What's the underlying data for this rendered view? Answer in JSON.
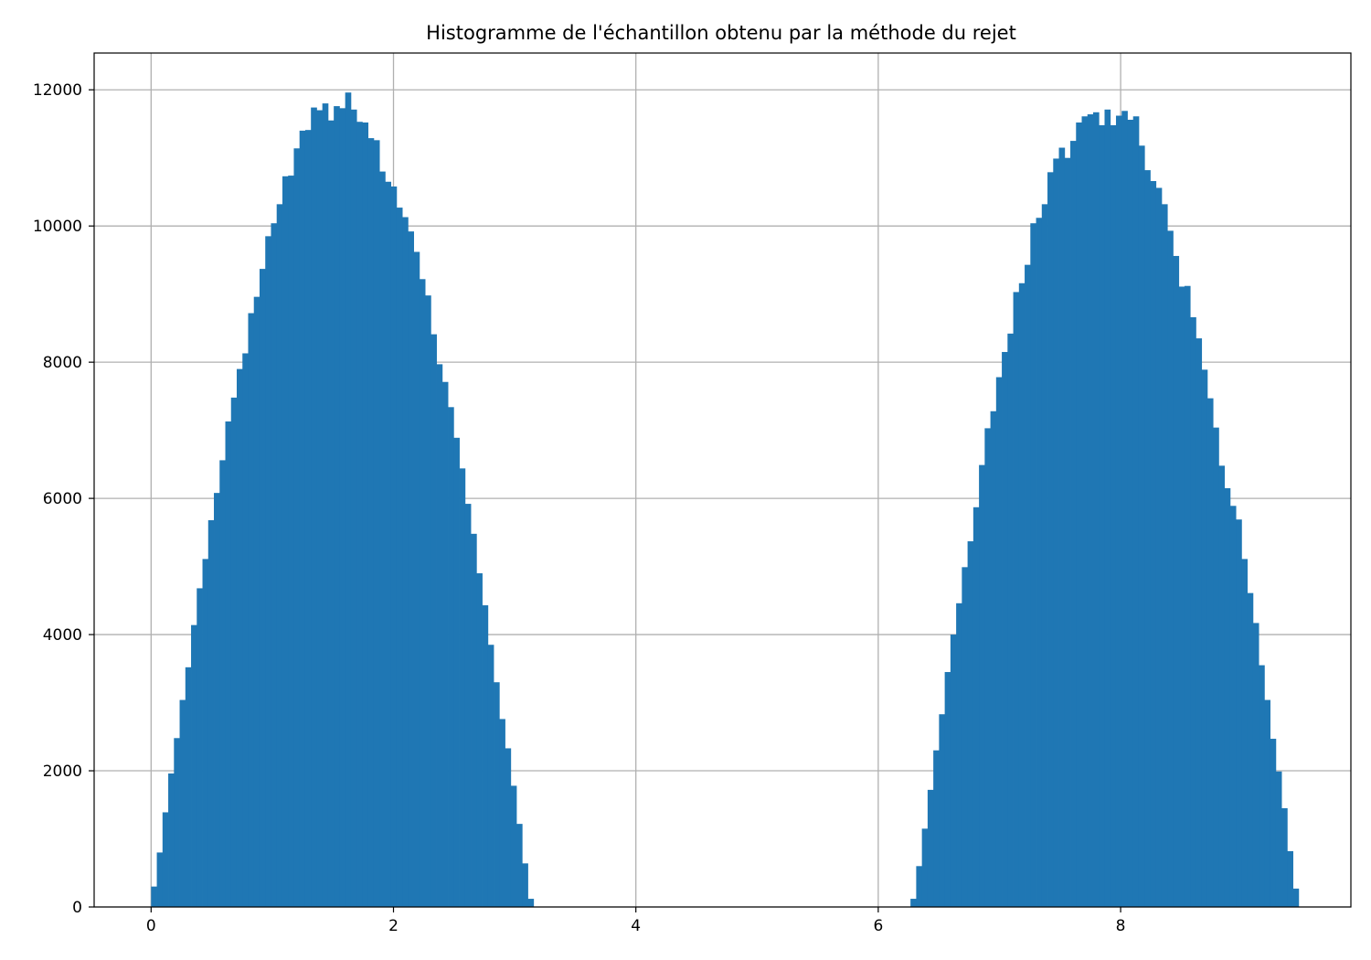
{
  "chart_data": {
    "type": "bar",
    "title": "Histogramme de l'échantillon obtenu par la méthode du rejet",
    "xlabel": "",
    "ylabel": "",
    "xlim": [
      -0.47,
      9.9
    ],
    "ylim": [
      0,
      12540
    ],
    "grid": true,
    "bar_color": "#1f77b4",
    "grid_color": "#b0b0b0",
    "x_ticks": [
      0,
      2,
      4,
      6,
      8
    ],
    "x_tick_labels": [
      "0",
      "2",
      "4",
      "6",
      "8"
    ],
    "y_ticks": [
      0,
      2000,
      4000,
      6000,
      8000,
      10000,
      12000
    ],
    "y_tick_labels": [
      "0",
      "2000",
      "4000",
      "6000",
      "8000",
      "10000",
      "12000"
    ],
    "bin_width": 0.0471,
    "segments": [
      {
        "start": 0.0,
        "values": [
          300,
          800,
          1390,
          1960,
          2480,
          3040,
          3520,
          4140,
          4680,
          5110,
          5680,
          6080,
          6560,
          7130,
          7480,
          7900,
          8130,
          8720,
          8960,
          9370,
          9850,
          10040,
          10320,
          10730,
          10740,
          11140,
          11400,
          11410,
          11740,
          11700,
          11800,
          11550,
          11760,
          11730,
          11960,
          11710,
          11530,
          11520,
          11290,
          11260,
          10800,
          10650,
          10580,
          10270,
          10130,
          9920,
          9620,
          9220,
          8980,
          8410,
          7970,
          7710,
          7340,
          6890,
          6440,
          5920,
          5480,
          4900,
          4430,
          3850,
          3300,
          2760,
          2330,
          1780,
          1220,
          640,
          120
        ]
      },
      {
        "start": 6.266,
        "values": [
          120,
          600,
          1150,
          1720,
          2300,
          2830,
          3450,
          4000,
          4460,
          4990,
          5370,
          5870,
          6490,
          7030,
          7280,
          7780,
          8150,
          8420,
          9030,
          9160,
          9430,
          10040,
          10120,
          10320,
          10790,
          10990,
          11150,
          11000,
          11250,
          11520,
          11610,
          11640,
          11670,
          11480,
          11710,
          11480,
          11620,
          11690,
          11560,
          11610,
          11180,
          10820,
          10660,
          10560,
          10320,
          9930,
          9560,
          9110,
          9120,
          8660,
          8350,
          7890,
          7470,
          7040,
          6480,
          6150,
          5890,
          5690,
          5110,
          4610,
          4170,
          3550,
          3040,
          2470,
          1990,
          1450,
          820,
          270
        ]
      }
    ]
  }
}
